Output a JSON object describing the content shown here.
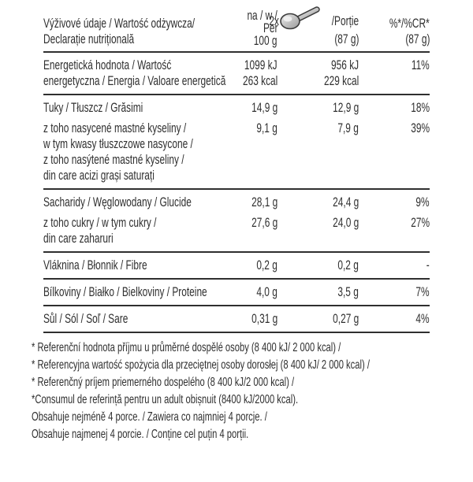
{
  "colors": {
    "text": "#2f2f2f",
    "rule": "#2f2f2f",
    "spoon_fill": "#bdbdbd",
    "spoon_outline": "#3a3a3a"
  },
  "header": {
    "title_line1": "Výživové údaje / Wartość odżywcza/",
    "title_line2": "Declarație nutrițională",
    "per100_lines": [
      "na / w /",
      "Per",
      "100 g"
    ],
    "portion_qty": "2x",
    "portion_label": "/Porție",
    "portion_weight": "(87 g)",
    "percent_label": "%*/%CR*",
    "percent_weight": "(87 g)",
    "spoon_icon": "spoon-icon"
  },
  "groups": [
    {
      "rows": [
        {
          "label_lines": [
            "Energetická hodnota / Wartość",
            "energetyczna / Energia / Valoare energetică"
          ],
          "per100": [
            "1099 kJ",
            "263 kcal"
          ],
          "portion": [
            "956 kJ",
            "229 kcal"
          ],
          "percent": "11%"
        }
      ]
    },
    {
      "rows": [
        {
          "label_lines": [
            "Tuky / Tłuszcz / Grăsimi"
          ],
          "per100": [
            "14,9 g"
          ],
          "portion": [
            "12,9 g"
          ],
          "percent": "18%"
        },
        {
          "label_lines": [
            "z toho nasycené mastné kyseliny /",
            "w tym kwasy tłuszczowe nasycone /",
            "z toho nasýtené mastné kyseliny /",
            "din care acizi grași saturați"
          ],
          "per100": [
            "9,1 g"
          ],
          "portion": [
            "7,9 g"
          ],
          "percent": "39%"
        }
      ]
    },
    {
      "rows": [
        {
          "label_lines": [
            "Sacharidy / Węglowodany / Glucide"
          ],
          "per100": [
            "28,1 g"
          ],
          "portion": [
            "24,4 g"
          ],
          "percent": "9%"
        },
        {
          "label_lines": [
            "z toho cukry / w tym cukry /",
            "din care zaharuri"
          ],
          "per100": [
            "27,6 g"
          ],
          "portion": [
            "24,0 g"
          ],
          "percent": "27%"
        }
      ]
    },
    {
      "rows": [
        {
          "label_lines": [
            "Vláknina / Błonnik / Fibre"
          ],
          "per100": [
            "0,2 g"
          ],
          "portion": [
            "0,2 g"
          ],
          "percent": "-"
        }
      ]
    },
    {
      "rows": [
        {
          "label_lines": [
            "Bílkoviny / Białko / Bielkoviny / Proteine"
          ],
          "per100": [
            "4,0 g"
          ],
          "portion": [
            "3,5 g"
          ],
          "percent": "7%"
        }
      ]
    },
    {
      "rows": [
        {
          "label_lines": [
            "Sůl / Sól / Soľ / Sare"
          ],
          "per100": [
            "0,31 g"
          ],
          "portion": [
            "0,27 g"
          ],
          "percent": "4%"
        }
      ]
    }
  ],
  "footnotes": [
    "* Referenční hodnota příjmu u průměrné dospělé osoby (8 400 kJ/ 2 000 kcal) /",
    "* Referencyjna wartość spożycia dla przeciętnej osoby dorosłej (8 400 kJ/ 2 000 kcal) /",
    "* Referenčný príjem priemerného dospelého (8 400 kJ/2 000 kcal) /",
    "*Consumul de referință pentru un adult obișnuit (8400 kJ/2000 kcal).",
    "Obsahuje nejméně 4 porce. / Zawiera co najmniej 4 porcje. /",
    "Obsahuje najmenej 4 porcie. / Conține cel puțin 4 porții."
  ]
}
